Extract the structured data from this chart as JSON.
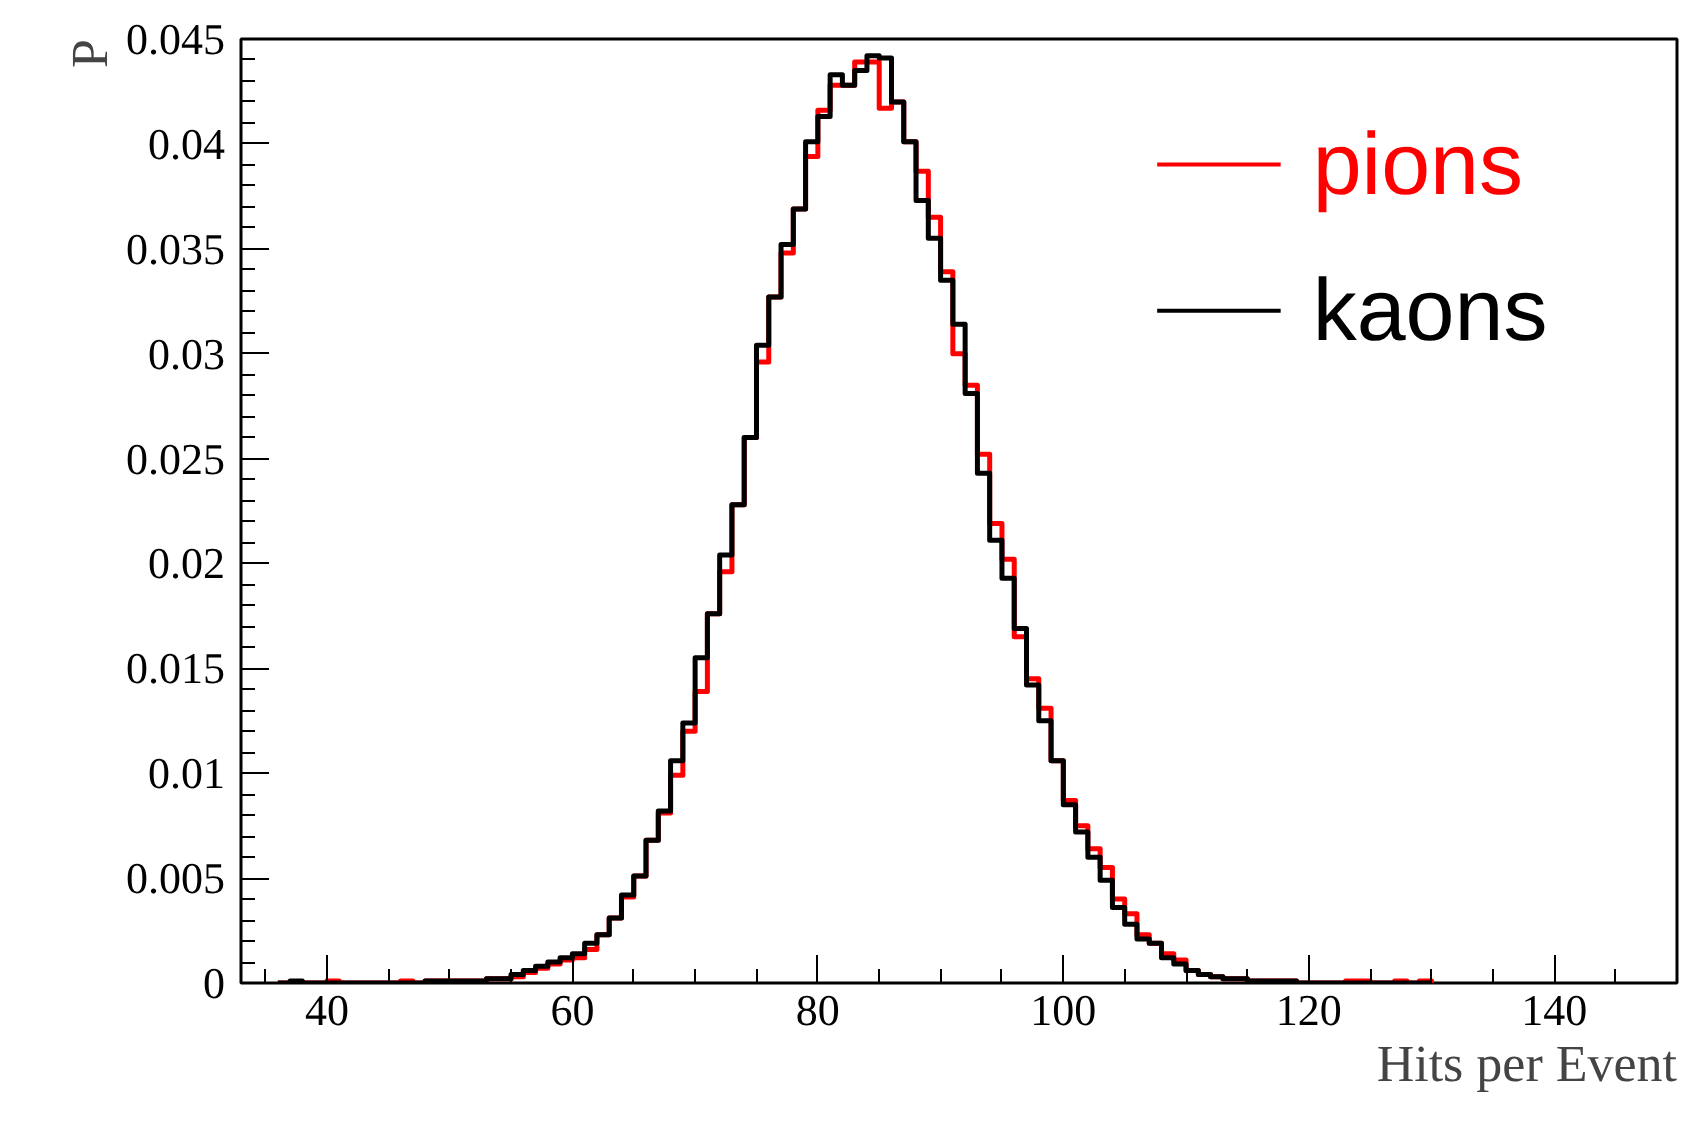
{
  "chart_data": {
    "type": "histogram",
    "xlabel": "Hits per Event",
    "ylabel": "P",
    "bins": [
      36,
      37,
      38,
      39,
      40,
      41,
      42,
      43,
      44,
      45,
      46,
      47,
      48,
      49,
      50,
      51,
      52,
      53,
      54,
      55,
      56,
      57,
      58,
      59,
      60,
      61,
      62,
      63,
      64,
      65,
      66,
      67,
      68,
      69,
      70,
      71,
      72,
      73,
      74,
      75,
      76,
      77,
      78,
      79,
      80,
      81,
      82,
      83,
      84,
      85,
      86,
      87,
      88,
      89,
      90,
      91,
      92,
      93,
      94,
      95,
      96,
      97,
      98,
      99,
      100,
      101,
      102,
      103,
      104,
      105,
      106,
      107,
      108,
      109,
      110,
      111,
      112,
      113,
      114,
      115,
      116,
      117,
      118,
      119,
      120,
      121,
      122,
      123,
      124,
      125,
      126,
      127,
      128,
      129,
      130
    ],
    "series": [
      {
        "name": "pions",
        "color": "#ff0000",
        "values": [
          0,
          0,
          0,
          0,
          0.0001,
          0,
          0,
          0,
          0,
          0,
          0.0001,
          0,
          0.0001,
          0.0001,
          0.0001,
          0.0001,
          0.0001,
          0.0002,
          0.0002,
          0.0003,
          0.0005,
          0.0007,
          0.0009,
          0.0011,
          0.0012,
          0.0016,
          0.0023,
          0.0031,
          0.0041,
          0.0051,
          0.0068,
          0.0081,
          0.0099,
          0.012,
          0.0139,
          0.0176,
          0.0196,
          0.0228,
          0.026,
          0.0296,
          0.0327,
          0.0348,
          0.0369,
          0.0394,
          0.0416,
          0.0428,
          0.0428,
          0.0439,
          0.0439,
          0.0417,
          0.042,
          0.0401,
          0.0387,
          0.0365,
          0.0339,
          0.03,
          0.0285,
          0.0252,
          0.0219,
          0.0202,
          0.0165,
          0.0145,
          0.0131,
          0.0106,
          0.0087,
          0.0075,
          0.0064,
          0.0055,
          0.004,
          0.0033,
          0.0023,
          0.0019,
          0.0014,
          0.0011,
          0.0006,
          0.0004,
          0.0003,
          0.0002,
          0.0002,
          0.0001,
          0.0001,
          0.0001,
          0.0001,
          0,
          0,
          0,
          0,
          0.0001,
          0.0001,
          0,
          0,
          0.0001,
          0,
          0.0001
        ]
      },
      {
        "name": "kaons",
        "color": "#000000",
        "values": [
          0,
          0.0001,
          0,
          0,
          0,
          0,
          0,
          0,
          0,
          0,
          0,
          0,
          0.0001,
          0.0001,
          0.0001,
          0.0001,
          0.0001,
          0.0002,
          0.0002,
          0.0004,
          0.0006,
          0.0008,
          0.001,
          0.0012,
          0.0014,
          0.0019,
          0.0023,
          0.0031,
          0.0042,
          0.0051,
          0.0068,
          0.0082,
          0.0106,
          0.0124,
          0.0155,
          0.0176,
          0.0204,
          0.0228,
          0.026,
          0.0304,
          0.0327,
          0.0352,
          0.0369,
          0.0401,
          0.0413,
          0.0433,
          0.0428,
          0.0435,
          0.0442,
          0.0441,
          0.042,
          0.0401,
          0.0373,
          0.0355,
          0.0335,
          0.0314,
          0.0281,
          0.0243,
          0.0211,
          0.0193,
          0.0169,
          0.0142,
          0.0125,
          0.0106,
          0.0085,
          0.0072,
          0.006,
          0.0049,
          0.0036,
          0.0028,
          0.0021,
          0.0019,
          0.0012,
          0.0009,
          0.0006,
          0.0004,
          0.0003,
          0.0002,
          0.0002,
          0.0001,
          0.0001,
          0.0001,
          0.0001,
          0,
          0,
          0,
          0,
          0,
          0,
          0,
          0,
          0,
          0,
          0
        ]
      }
    ],
    "xlim": [
      33,
      150
    ],
    "ylim": [
      0,
      0.045
    ],
    "xticks": [
      40,
      60,
      80,
      100,
      120,
      140
    ],
    "yticks": [
      0,
      0.005,
      0.01,
      0.015,
      0.02,
      0.025,
      0.03,
      0.035,
      0.04,
      0.045
    ],
    "grid": false,
    "legend": "top right"
  }
}
